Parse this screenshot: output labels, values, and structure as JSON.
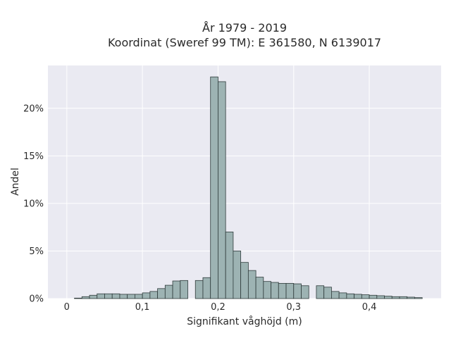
{
  "chart_data": {
    "type": "bar",
    "title": [
      "År 1979 - 2019",
      "Koordinat (Sweref 99 TM): E 361580, N 6139017"
    ],
    "xlabel": "Signifikant våghöjd (m)",
    "ylabel": "Andel",
    "xlim": [
      -0.025,
      0.495
    ],
    "ylim": [
      0,
      24.5
    ],
    "x_ticks": [
      {
        "value": 0,
        "label": "0"
      },
      {
        "value": 0.1,
        "label": "0,1"
      },
      {
        "value": 0.2,
        "label": "0,2"
      },
      {
        "value": 0.3,
        "label": "0,3"
      },
      {
        "value": 0.4,
        "label": "0,4"
      }
    ],
    "y_ticks": [
      {
        "value": 0,
        "label": "0%"
      },
      {
        "value": 5,
        "label": "5%"
      },
      {
        "value": 10,
        "label": "10%"
      },
      {
        "value": 15,
        "label": "15%"
      },
      {
        "value": 20,
        "label": "20%"
      }
    ],
    "bin_width": 0.01,
    "bin_starts": [
      0.01,
      0.02,
      0.03,
      0.04,
      0.05,
      0.06,
      0.07,
      0.08,
      0.09,
      0.1,
      0.11,
      0.12,
      0.13,
      0.14,
      0.15,
      0.16,
      0.17,
      0.18,
      0.19,
      0.2,
      0.21,
      0.22,
      0.23,
      0.24,
      0.25,
      0.26,
      0.27,
      0.28,
      0.29,
      0.3,
      0.31,
      0.32,
      0.33,
      0.34,
      0.35,
      0.36,
      0.37,
      0.38,
      0.39,
      0.4,
      0.41,
      0.42,
      0.43,
      0.44,
      0.45,
      0.46
    ],
    "values": [
      0.05,
      0.2,
      0.35,
      0.5,
      0.5,
      0.5,
      0.45,
      0.45,
      0.45,
      0.6,
      0.75,
      1.05,
      1.4,
      1.85,
      1.9,
      0,
      1.9,
      2.2,
      23.3,
      22.8,
      7.0,
      5.0,
      3.8,
      2.95,
      2.25,
      1.8,
      1.7,
      1.6,
      1.6,
      1.55,
      1.35,
      0,
      1.35,
      1.2,
      0.75,
      0.6,
      0.5,
      0.45,
      0.4,
      0.35,
      0.3,
      0.25,
      0.2,
      0.2,
      0.15,
      0.1
    ],
    "grid": true,
    "colors": {
      "bar_fill": "#9db3b3",
      "bar_edge": "#2f3b3b",
      "plot_bg": "#eaeaf2",
      "grid": "#ffffff"
    }
  }
}
